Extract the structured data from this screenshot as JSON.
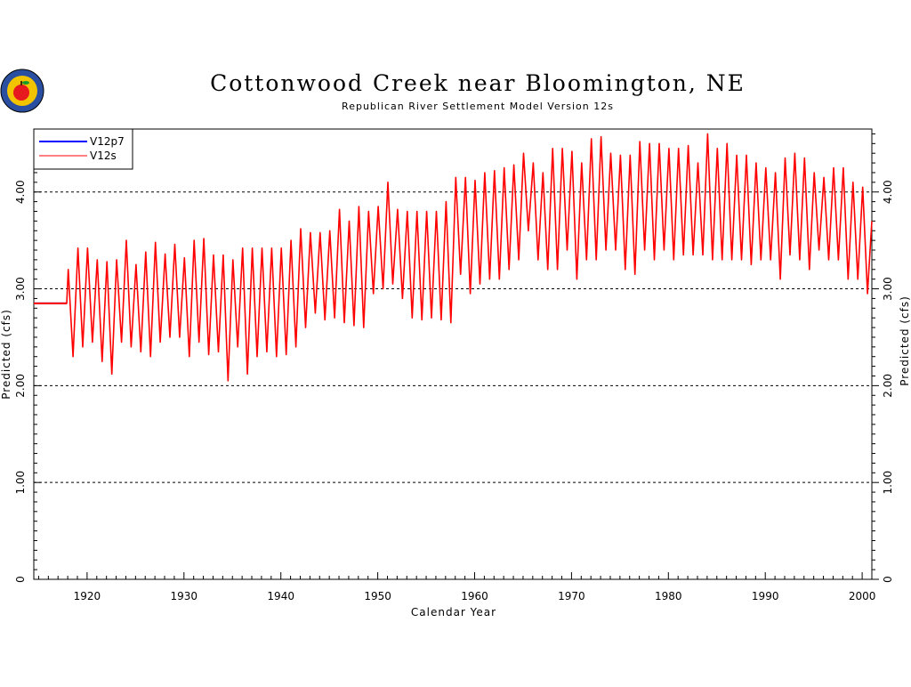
{
  "colors": {
    "series_v12p7": "#0000ff",
    "series_v12s": "#ff0000",
    "axis": "#000000",
    "grid": "#000000",
    "background": "#ffffff"
  },
  "logo": {
    "icon": "apple-seal-logo"
  },
  "chart_data": {
    "type": "line",
    "title": "Cottonwood Creek near Bloomington, NE",
    "subtitle": "Republican River Settlement Model Version 12s",
    "xlabel": "Calendar Year",
    "ylabel_left": "Predicted (cfs)",
    "ylabel_right": "Predicted (cfs)",
    "xlim": [
      1914.5,
      2001
    ],
    "ylim": [
      0,
      4.65
    ],
    "x_ticks": [
      1920,
      1930,
      1940,
      1950,
      1960,
      1970,
      1980,
      1990,
      2000
    ],
    "x_tick_labels": [
      "1920",
      "1930",
      "1940",
      "1950",
      "1960",
      "1970",
      "1980",
      "1990",
      "2000"
    ],
    "y_ticks": [
      0,
      1,
      2,
      3,
      4
    ],
    "y_tick_labels": [
      "0",
      "1.00",
      "2.00",
      "3.00",
      "4.00"
    ],
    "grid": {
      "y": true,
      "x": false,
      "style": "dashed"
    },
    "legend": {
      "position": "top-left",
      "entries": [
        "V12p7",
        "V12s"
      ]
    },
    "series": [
      {
        "name": "V12p7",
        "note_visible": "fully overlapped by V12s",
        "constant_before_1918": {
          "x": [
            1914.5,
            1917.9
          ],
          "y": 2.85
        }
      },
      {
        "name": "V12s",
        "constant_before_1918": {
          "x": [
            1914.5,
            1917.9
          ],
          "y": 2.85
        },
        "seasonal_annual": {
          "years": [
            1918,
            1919,
            1920,
            1921,
            1922,
            1923,
            1924,
            1925,
            1926,
            1927,
            1928,
            1929,
            1930,
            1931,
            1932,
            1933,
            1934,
            1935,
            1936,
            1937,
            1938,
            1939,
            1940,
            1941,
            1942,
            1943,
            1944,
            1945,
            1946,
            1947,
            1948,
            1949,
            1950,
            1951,
            1952,
            1953,
            1954,
            1955,
            1956,
            1957,
            1958,
            1959,
            1960,
            1961,
            1962,
            1963,
            1964,
            1965,
            1966,
            1967,
            1968,
            1969,
            1970,
            1971,
            1972,
            1973,
            1974,
            1975,
            1976,
            1977,
            1978,
            1979,
            1980,
            1981,
            1982,
            1983,
            1984,
            1985,
            1986,
            1987,
            1988,
            1989,
            1990,
            1991,
            1992,
            1993,
            1994,
            1995,
            1996,
            1997,
            1998,
            1999,
            2000
          ],
          "annual_max": [
            3.2,
            3.42,
            3.42,
            3.3,
            3.28,
            3.3,
            3.5,
            3.25,
            3.38,
            3.48,
            3.36,
            3.46,
            3.32,
            3.5,
            3.52,
            3.35,
            3.35,
            3.3,
            3.42,
            3.42,
            3.42,
            3.42,
            3.42,
            3.5,
            3.62,
            3.58,
            3.58,
            3.6,
            3.82,
            3.7,
            3.85,
            3.8,
            3.85,
            4.1,
            3.82,
            3.8,
            3.8,
            3.8,
            3.8,
            3.9,
            4.15,
            4.15,
            4.12,
            4.2,
            4.22,
            4.25,
            4.28,
            4.4,
            4.3,
            4.2,
            4.45,
            4.45,
            4.42,
            4.3,
            4.55,
            4.57,
            4.4,
            4.38,
            4.38,
            4.52,
            4.5,
            4.5,
            4.45,
            4.45,
            4.48,
            4.3,
            4.6,
            4.45,
            4.5,
            4.38,
            4.38,
            4.3,
            4.25,
            4.2,
            4.35,
            4.4,
            4.35,
            4.2,
            4.15,
            4.25,
            4.25,
            4.1,
            4.05
          ],
          "annual_min": [
            2.3,
            2.4,
            2.45,
            2.25,
            2.12,
            2.45,
            2.4,
            2.35,
            2.3,
            2.45,
            2.5,
            2.5,
            2.3,
            2.45,
            2.32,
            2.35,
            2.05,
            2.4,
            2.12,
            2.3,
            2.35,
            2.3,
            2.32,
            2.4,
            2.6,
            2.75,
            2.68,
            2.7,
            2.65,
            2.62,
            2.6,
            2.95,
            3.0,
            3.05,
            2.9,
            2.7,
            2.68,
            2.7,
            2.68,
            2.65,
            3.15,
            2.95,
            3.05,
            3.1,
            3.1,
            3.2,
            3.3,
            3.6,
            3.3,
            3.2,
            3.2,
            3.4,
            3.1,
            3.3,
            3.3,
            3.4,
            3.4,
            3.2,
            3.15,
            3.4,
            3.3,
            3.4,
            3.3,
            3.35,
            3.35,
            3.35,
            3.3,
            3.3,
            3.3,
            3.3,
            3.25,
            3.3,
            3.3,
            3.1,
            3.35,
            3.3,
            3.2,
            3.4,
            3.3,
            3.3,
            3.1,
            3.1,
            2.95
          ]
        }
      }
    ]
  }
}
